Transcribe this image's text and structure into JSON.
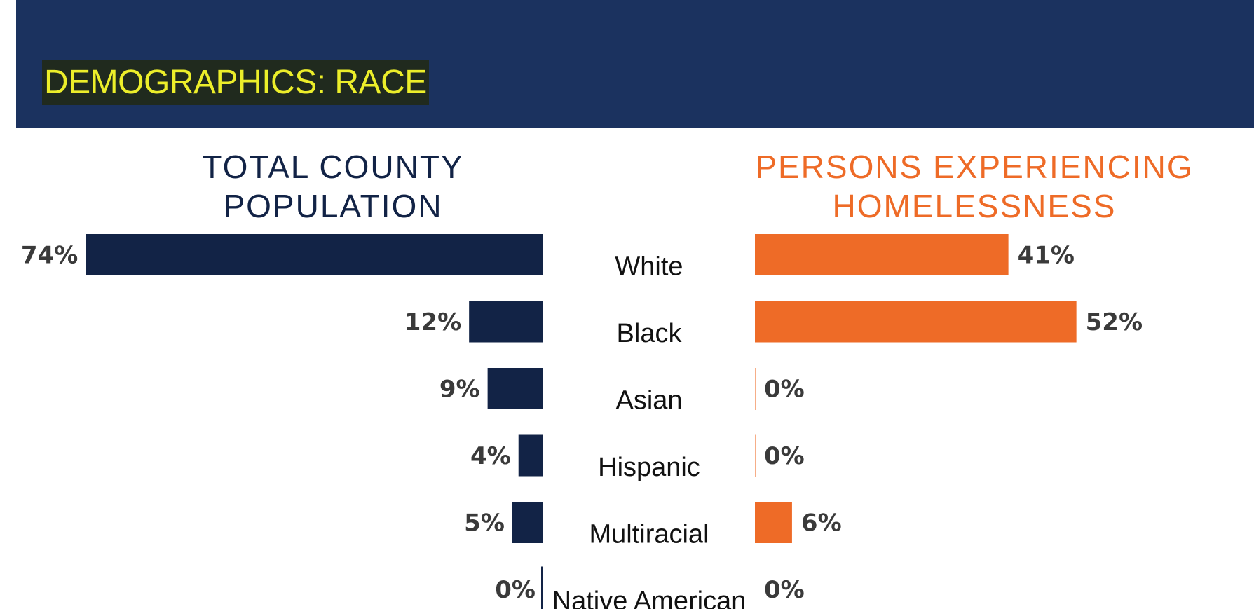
{
  "page": {
    "title": "DEMOGRAPHICS: RACE"
  },
  "colors": {
    "header_bg": "#1b325f",
    "title_text": "#ecee2a",
    "county_bar": "#122346",
    "homeless_bar": "#ee6b27"
  },
  "chart_data": {
    "type": "bar",
    "orientation": "horizontal",
    "layout": "back-to-back",
    "title": "DEMOGRAPHICS: RACE",
    "categories": [
      "White",
      "Black",
      "Asian",
      "Hispanic",
      "Multiracial",
      "Native American"
    ],
    "series": [
      {
        "name": "TOTAL COUNTY POPULATION",
        "name_lines": [
          "TOTAL COUNTY",
          "POPULATION"
        ],
        "values": [
          74,
          12,
          9,
          4,
          5,
          0
        ],
        "labels": [
          "74%",
          "12%",
          "9%",
          "4%",
          "5%",
          "0%"
        ],
        "color": "#122346",
        "direction": "left"
      },
      {
        "name": "PERSONS EXPERIENCING HOMELESSNESS",
        "name_lines": [
          "PERSONS EXPERIENCING",
          "HOMELESSNESS"
        ],
        "values": [
          41,
          52,
          0,
          0,
          6,
          0
        ],
        "labels": [
          "41%",
          "52%",
          "0%",
          "0%",
          "6%",
          "0%"
        ],
        "color": "#ee6b27",
        "direction": "right"
      }
    ],
    "xlim": [
      0,
      100
    ],
    "unit": "%",
    "grid": false,
    "legend": "none"
  }
}
